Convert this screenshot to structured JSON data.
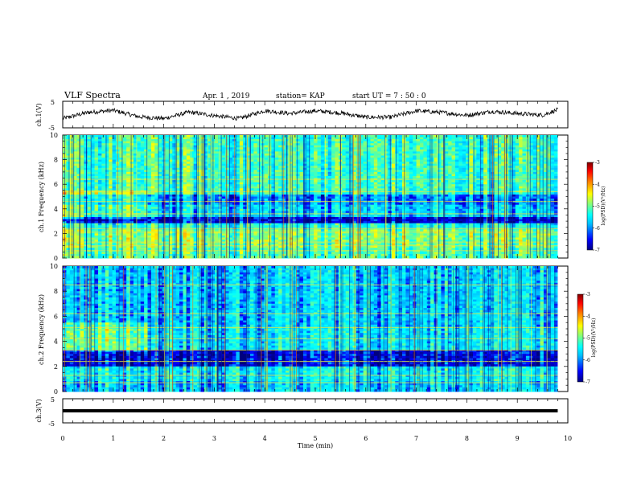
{
  "header": {
    "title": "VLF Spectra",
    "date": "Apr. 1 , 2019",
    "station": "station= KAP",
    "start": "start  UT =   7 : 50 : 0"
  },
  "colors": {
    "spectrogram_gradient": [
      "#00007f",
      "#0000ff",
      "#00bfff",
      "#00ffff",
      "#7fff7f",
      "#ffff00",
      "#ff7f00",
      "#ff0000",
      "#7f0000"
    ],
    "trace": "#000000",
    "frame": "#000000"
  },
  "chart_data": [
    {
      "type": "line",
      "panel": "ch1-waveform",
      "ylabel": "ch.1(V)",
      "ylim": [
        -5,
        5
      ],
      "yticks": [
        5,
        -5
      ],
      "xlim": [
        0,
        10
      ],
      "series": [
        {
          "x": [
            0,
            0.5,
            1,
            1.5,
            2,
            2.5,
            3,
            3.5,
            4,
            4.5,
            5,
            5.5,
            6,
            6.5,
            7,
            7.5,
            8,
            8.5,
            9,
            9.5,
            9.8
          ],
          "values": [
            -1.5,
            0.8,
            1.6,
            -0.8,
            -1.5,
            0.9,
            -0.4,
            -1.5,
            1.5,
            0.4,
            1.4,
            0.6,
            -1,
            -1,
            1.4,
            0.8,
            -0.3,
            1.2,
            0.4,
            -0.2,
            1.8
          ]
        }
      ]
    },
    {
      "type": "heatmap",
      "panel": "ch1-spectrogram",
      "ylabel": "ch.1 Frequency (kHz)",
      "ylim": [
        0,
        10
      ],
      "yticks": [
        "0",
        "2",
        "4",
        "6",
        "8",
        "10"
      ],
      "xlim": [
        0,
        9.8
      ],
      "colorbar": {
        "label": "log(PSD)(V²/Hz)",
        "range": [
          -7,
          -3
        ],
        "ticks": [
          "-3",
          "-4",
          "-5",
          "-6",
          "-7"
        ]
      }
    },
    {
      "type": "heatmap",
      "panel": "ch2-spectrogram",
      "ylabel": "ch.2 Frequency (kHz)",
      "ylim": [
        0,
        10
      ],
      "yticks": [
        "0",
        "2",
        "4",
        "6",
        "8",
        "10"
      ],
      "xlim": [
        0,
        9.8
      ],
      "colorbar": {
        "label": "log(PSD)(V²/Hz)",
        "range": [
          -7,
          -3
        ],
        "ticks": [
          "-3",
          "-4",
          "-5",
          "-6",
          "-7"
        ]
      }
    },
    {
      "type": "line",
      "panel": "ch3-waveform",
      "ylabel": "ch.3(V)",
      "ylim": [
        -5,
        5
      ],
      "yticks": [
        5,
        -5
      ],
      "xlim": [
        0,
        10
      ],
      "series": [
        {
          "x": [
            0,
            9.8
          ],
          "values": [
            0,
            0
          ]
        }
      ]
    }
  ],
  "x_axis": {
    "label": "Time  (min)",
    "range": [
      0,
      10
    ],
    "ticks": [
      "0",
      "1",
      "2",
      "3",
      "4",
      "5",
      "6",
      "7",
      "8",
      "9",
      "10"
    ]
  }
}
